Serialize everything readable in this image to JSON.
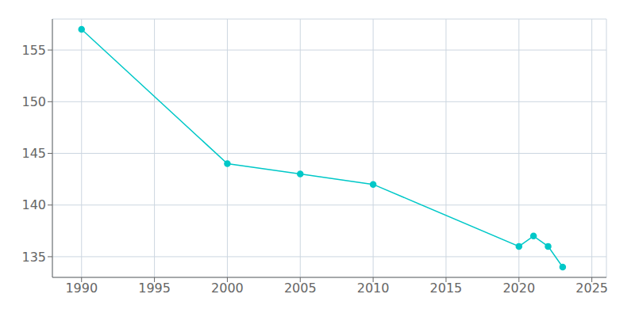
{
  "chart_data": {
    "type": "line",
    "x": [
      1990,
      2000,
      2005,
      2010,
      2020,
      2021,
      2022,
      2023
    ],
    "values": [
      157,
      144,
      143,
      142,
      136,
      137,
      136,
      134
    ],
    "color": "#00C8C8",
    "marker": "circle",
    "xlim": [
      1988,
      2026
    ],
    "ylim": [
      133,
      158
    ],
    "xticks": [
      1990,
      1995,
      2000,
      2005,
      2010,
      2015,
      2020,
      2025
    ],
    "yticks": [
      135,
      140,
      145,
      150,
      155
    ],
    "grid": true
  }
}
